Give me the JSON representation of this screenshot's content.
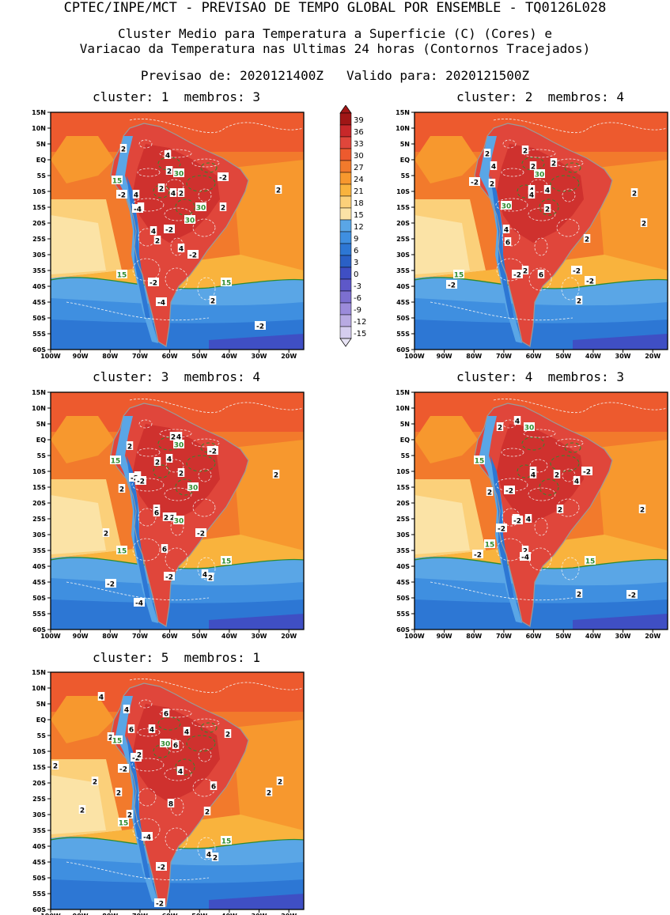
{
  "header": {
    "line1": "CPTEC/INPE/MCT - PREVISAO DE TEMPO GLOBAL POR ENSEMBLE - TQ0126L028",
    "line2": "Cluster Medio para Temperatura a Superficie (C) (Cores) e",
    "line3": "Variacao da Temperatura nas Ultimas 24 horas (Contornos Tracejados)",
    "line4": "Previsao de: 2020121400Z   Valido para: 2020121500Z"
  },
  "lat_labels": [
    "15N",
    "10N",
    "5N",
    "EQ",
    "5S",
    "10S",
    "15S",
    "20S",
    "25S",
    "30S",
    "35S",
    "40S",
    "45S",
    "50S",
    "55S",
    "60S"
  ],
  "lon_labels": [
    "100W",
    "90W",
    "80W",
    "70W",
    "60W",
    "50W",
    "40W",
    "30W",
    "20W"
  ],
  "colorbar": {
    "labels": [
      "39",
      "36",
      "33",
      "30",
      "27",
      "24",
      "21",
      "18",
      "15",
      "12",
      "9",
      "6",
      "3",
      "0",
      "-3",
      "-6",
      "-9",
      "-12",
      "-15"
    ],
    "colors": [
      "#a01616",
      "#c8282a",
      "#e0463b",
      "#ed5a2e",
      "#f27a2c",
      "#f7982e",
      "#f9b33d",
      "#fbd07a",
      "#fbe3a6",
      "#5aa6e6",
      "#3f8fe0",
      "#2d77d4",
      "#2a60c6",
      "#3f4fc4",
      "#5e58c8",
      "#7c6fd0",
      "#9b8bda",
      "#b8aae2",
      "#d5cdef"
    ]
  },
  "panels": [
    {
      "title": "cluster: 1  membros: 3",
      "labels": [
        [
          "2",
          92,
          46
        ],
        [
          "4",
          148,
          54
        ],
        [
          "2",
          150,
          74
        ],
        [
          "30",
          162,
          77
        ],
        [
          "-2",
          218,
          82
        ],
        [
          "15",
          84,
          86
        ],
        [
          "2",
          140,
          96
        ],
        [
          "4",
          155,
          102
        ],
        [
          "4",
          108,
          104
        ],
        [
          "2",
          165,
          102
        ],
        [
          "-2",
          90,
          104
        ],
        [
          "2",
          288,
          98
        ],
        [
          "4",
          114,
          120
        ],
        [
          "30",
          190,
          120
        ],
        [
          "2",
          218,
          120
        ],
        [
          "-4",
          110,
          122
        ],
        [
          "-2",
          150,
          148
        ],
        [
          "30",
          176,
          136
        ],
        [
          "4",
          130,
          150
        ],
        [
          "2",
          135,
          162
        ],
        [
          "4",
          165,
          172
        ],
        [
          "-2",
          180,
          180
        ],
        [
          "15",
          90,
          205
        ],
        [
          "-2",
          130,
          215
        ],
        [
          "15",
          222,
          215
        ],
        [
          "2",
          205,
          238
        ],
        [
          "-4",
          140,
          240
        ],
        [
          "-2",
          265,
          270
        ]
      ]
    },
    {
      "title": "cluster: 2  membros: 4",
      "labels": [
        [
          "2",
          92,
          52
        ],
        [
          "4",
          100,
          68
        ],
        [
          "2",
          140,
          48
        ],
        [
          "2",
          176,
          64
        ],
        [
          "2",
          150,
          68
        ],
        [
          "30",
          158,
          78
        ],
        [
          "-2",
          76,
          88
        ],
        [
          "2",
          98,
          90
        ],
        [
          "4",
          148,
          98
        ],
        [
          "4",
          148,
          104
        ],
        [
          "4",
          168,
          98
        ],
        [
          "2",
          278,
          102
        ],
        [
          "30",
          116,
          118
        ],
        [
          "2",
          168,
          122
        ],
        [
          "2",
          218,
          160
        ],
        [
          "4",
          116,
          148
        ],
        [
          "2",
          290,
          140
        ],
        [
          "6",
          118,
          164
        ],
        [
          "2",
          140,
          200
        ],
        [
          "-2",
          130,
          205
        ],
        [
          "6",
          160,
          205
        ],
        [
          "-2",
          205,
          200
        ],
        [
          "-2",
          222,
          213
        ],
        [
          "15",
          56,
          205
        ],
        [
          "-2",
          47,
          218
        ],
        [
          "2",
          208,
          238
        ]
      ]
    },
    {
      "title": "cluster: 3  membros: 4",
      "labels": [
        [
          "2",
          155,
          56
        ],
        [
          "4",
          162,
          56
        ],
        [
          "30",
          162,
          66
        ],
        [
          "2",
          100,
          68
        ],
        [
          "4",
          150,
          84
        ],
        [
          "-2",
          205,
          74
        ],
        [
          "2",
          135,
          88
        ],
        [
          "15",
          82,
          86
        ],
        [
          "2",
          110,
          106
        ],
        [
          "-2",
          106,
          108
        ],
        [
          "2",
          165,
          102
        ],
        [
          "-2",
          114,
          112
        ],
        [
          "2",
          285,
          104
        ],
        [
          "30",
          180,
          120
        ],
        [
          "2",
          90,
          122
        ],
        [
          "2",
          134,
          148
        ],
        [
          "-2",
          152,
          158
        ],
        [
          "2",
          146,
          158
        ],
        [
          "6",
          134,
          152
        ],
        [
          "30",
          162,
          162
        ],
        [
          "-2",
          190,
          178
        ],
        [
          "2",
          70,
          178
        ],
        [
          "6",
          144,
          198
        ],
        [
          "15",
          90,
          200
        ],
        [
          "15",
          222,
          213
        ],
        [
          "-2",
          150,
          233
        ],
        [
          "4",
          195,
          230
        ],
        [
          "2",
          202,
          234
        ],
        [
          "-2",
          76,
          242
        ],
        [
          "-4",
          112,
          266
        ]
      ]
    },
    {
      "title": "cluster: 4  membros: 3",
      "labels": [
        [
          "4",
          130,
          36
        ],
        [
          "30",
          145,
          44
        ],
        [
          "2",
          108,
          44
        ],
        [
          "15",
          82,
          86
        ],
        [
          "2",
          150,
          100
        ],
        [
          "4",
          150,
          104
        ],
        [
          "2",
          180,
          104
        ],
        [
          "-2",
          218,
          100
        ],
        [
          "4",
          205,
          112
        ],
        [
          "-2",
          120,
          124
        ],
        [
          "2",
          95,
          126
        ],
        [
          "2",
          288,
          148
        ],
        [
          "6",
          128,
          160
        ],
        [
          "4",
          144,
          160
        ],
        [
          "2",
          184,
          148
        ],
        [
          "-2",
          110,
          172
        ],
        [
          "-2",
          130,
          162
        ],
        [
          "15",
          95,
          192
        ],
        [
          "-2",
          80,
          205
        ],
        [
          "2",
          140,
          200
        ],
        [
          "-4",
          140,
          208
        ],
        [
          "15",
          222,
          213
        ],
        [
          "2",
          208,
          255
        ],
        [
          "-2",
          275,
          256
        ]
      ]
    },
    {
      "title": "cluster: 5  membros: 1",
      "labels": [
        [
          "4",
          64,
          31
        ],
        [
          "4",
          96,
          47
        ],
        [
          "6",
          146,
          52
        ],
        [
          "6",
          102,
          72
        ],
        [
          "4",
          128,
          72
        ],
        [
          "4",
          172,
          75
        ],
        [
          "2",
          76,
          82
        ],
        [
          "15",
          84,
          86
        ],
        [
          "30",
          145,
          90
        ],
        [
          "6",
          158,
          92
        ],
        [
          "2",
          224,
          78
        ],
        [
          "-2",
          108,
          108
        ],
        [
          "2",
          112,
          104
        ],
        [
          "-2",
          92,
          122
        ],
        [
          "2",
          6,
          118
        ],
        [
          "4",
          164,
          125
        ],
        [
          "2",
          56,
          138
        ],
        [
          "2",
          86,
          152
        ],
        [
          "6",
          206,
          144
        ],
        [
          "2",
          290,
          138
        ],
        [
          "2",
          276,
          152
        ],
        [
          "2",
          40,
          174
        ],
        [
          "2",
          100,
          180
        ],
        [
          "8",
          152,
          166
        ],
        [
          "2",
          198,
          176
        ],
        [
          "15",
          92,
          190
        ],
        [
          "-4",
          122,
          208
        ],
        [
          "15",
          222,
          213
        ],
        [
          "4",
          200,
          230
        ],
        [
          "2",
          208,
          234
        ],
        [
          "-2",
          140,
          246
        ],
        [
          "-2",
          138,
          292
        ]
      ]
    }
  ]
}
